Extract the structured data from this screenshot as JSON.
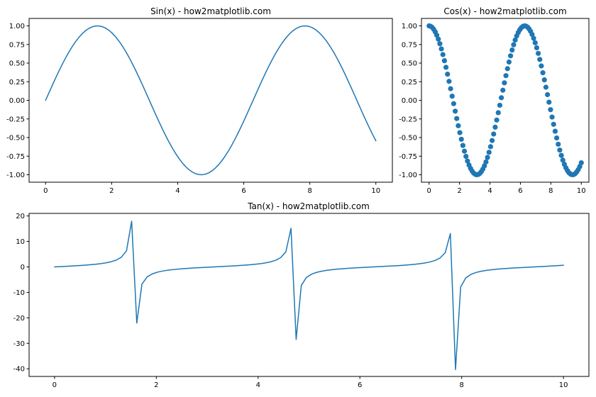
{
  "chart_data": [
    {
      "id": "sin",
      "type": "line",
      "title": "Sin(x) - how2matplotlib.com",
      "xlabel": "",
      "ylabel": "",
      "function": "sin",
      "x_range": [
        0,
        10
      ],
      "samples": 100,
      "xlim": [
        -0.5,
        10.5
      ],
      "ylim": [
        -1.1,
        1.1
      ],
      "xticks": [
        0,
        2,
        4,
        6,
        8,
        10
      ],
      "xtick_labels": [
        "0",
        "2",
        "4",
        "6",
        "8",
        "10"
      ],
      "yticks": [
        1.0,
        0.75,
        0.5,
        0.25,
        0.0,
        -0.25,
        -0.5,
        -0.75,
        -1.0
      ],
      "ytick_labels": [
        "1.00",
        "0.75",
        "0.50",
        "0.25",
        "0.00",
        "-0.25",
        "-0.50",
        "-0.75",
        "-1.00"
      ],
      "grid": false,
      "color": "#1f77b4"
    },
    {
      "id": "cos",
      "type": "scatter",
      "title": "Cos(x) - how2matplotlib.com",
      "xlabel": "",
      "ylabel": "",
      "function": "cos",
      "x_range": [
        0,
        10
      ],
      "samples": 100,
      "xlim": [
        -0.5,
        10.5
      ],
      "ylim": [
        -1.1,
        1.1
      ],
      "xticks": [
        0,
        2,
        4,
        6,
        8,
        10
      ],
      "xtick_labels": [
        "0",
        "2",
        "4",
        "6",
        "8",
        "10"
      ],
      "yticks": [
        1.0,
        0.75,
        0.5,
        0.25,
        0.0,
        -0.25,
        -0.5,
        -0.75,
        -1.0
      ],
      "ytick_labels": [
        "1.00",
        "0.75",
        "0.50",
        "0.25",
        "0.00",
        "-0.25",
        "-0.50",
        "-0.75",
        "-1.00"
      ],
      "grid": false,
      "color": "#1f77b4"
    },
    {
      "id": "tan",
      "type": "line",
      "title": "Tan(x) - how2matplotlib.com",
      "xlabel": "",
      "ylabel": "",
      "function": "tan",
      "x_range": [
        0,
        10
      ],
      "samples": 100,
      "xlim": [
        -0.5,
        10.5
      ],
      "ylim": [
        -43.0,
        21.0
      ],
      "xticks": [
        0,
        2,
        4,
        6,
        8,
        10
      ],
      "xtick_labels": [
        "0",
        "2",
        "4",
        "6",
        "8",
        "10"
      ],
      "yticks": [
        20,
        10,
        0,
        -10,
        -20,
        -30,
        -40
      ],
      "ytick_labels": [
        "20",
        "10",
        "0",
        "-10",
        "-20",
        "-30",
        "-40"
      ],
      "grid": false,
      "color": "#1f77b4"
    }
  ]
}
